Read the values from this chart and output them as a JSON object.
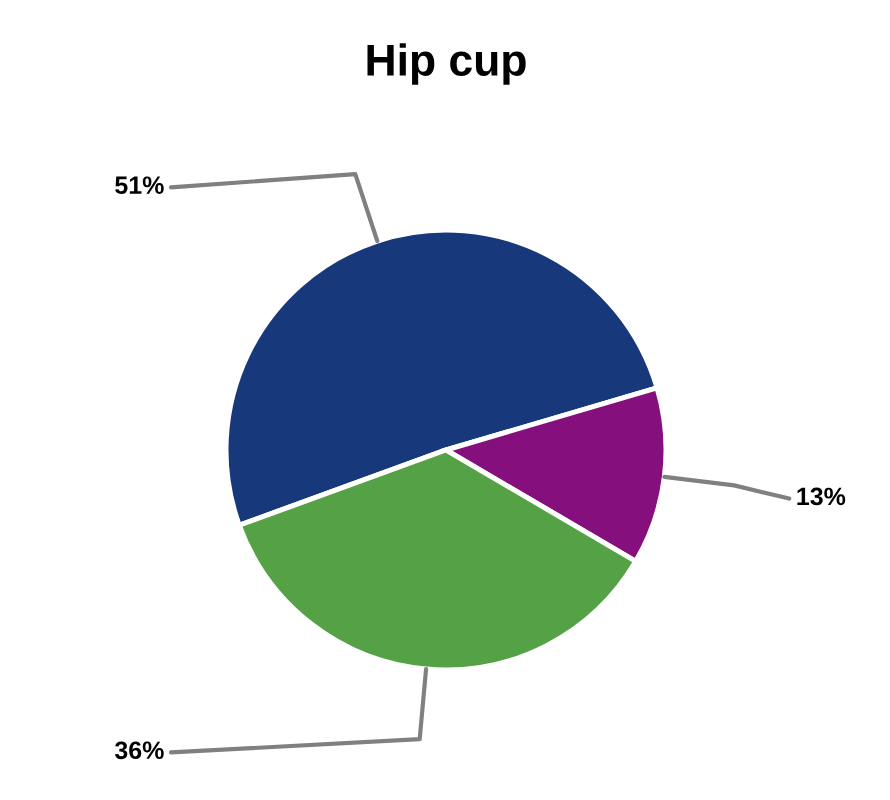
{
  "chart_data": {
    "type": "pie",
    "title": "Hip cup",
    "categories": [
      null,
      null,
      null
    ],
    "values": [
      51,
      13,
      36
    ],
    "colors": [
      "#17387a",
      "#850f7c",
      "#54a146"
    ],
    "value_labels": [
      "51%",
      "13%",
      "36%"
    ]
  }
}
